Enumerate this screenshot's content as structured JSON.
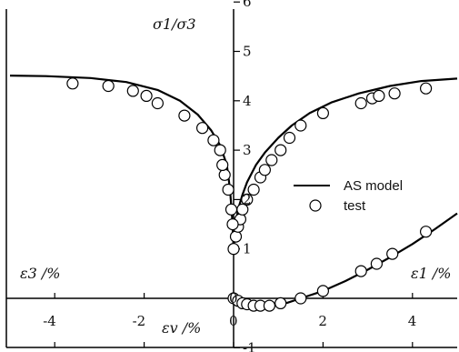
{
  "chart_data": {
    "type": "line",
    "y_axis": {
      "label": "σ1/σ3",
      "range": [
        -1,
        6
      ],
      "ticks": [
        "-1",
        "0",
        "1",
        "2",
        "3",
        "4",
        "5",
        "6"
      ],
      "tick_values": [
        -1,
        0,
        1,
        2,
        3,
        4,
        5,
        6
      ]
    },
    "x_axis": {
      "range": [
        -5,
        5
      ],
      "ticks": [
        "-4",
        "-2",
        "0",
        "2",
        "4"
      ],
      "tick_values": [
        -4,
        -2,
        0,
        2,
        4
      ]
    },
    "axis_labels": {
      "eps3": "ε3 /%",
      "eps1": "ε1 /%",
      "epsv": "εv /%"
    },
    "legend": [
      {
        "name": "AS model",
        "kind": "line"
      },
      {
        "name": "test",
        "kind": "marker"
      }
    ],
    "series": [
      {
        "name": "AS model",
        "panel": "stress-strain ε1 (right)",
        "points": [
          [
            0,
            1.0
          ],
          [
            0.05,
            1.5
          ],
          [
            0.1,
            1.8
          ],
          [
            0.2,
            2.1
          ],
          [
            0.3,
            2.35
          ],
          [
            0.5,
            2.7
          ],
          [
            0.7,
            2.95
          ],
          [
            1.0,
            3.25
          ],
          [
            1.3,
            3.5
          ],
          [
            1.7,
            3.75
          ],
          [
            2.2,
            3.97
          ],
          [
            2.8,
            4.15
          ],
          [
            3.5,
            4.3
          ],
          [
            4.2,
            4.4
          ],
          [
            5.0,
            4.45
          ]
        ]
      },
      {
        "name": "AS model",
        "panel": "stress-strain ε3 (left)",
        "points": [
          [
            0,
            1.0
          ],
          [
            -0.03,
            1.6
          ],
          [
            -0.08,
            2.2
          ],
          [
            -0.15,
            2.7
          ],
          [
            -0.3,
            3.1
          ],
          [
            -0.5,
            3.4
          ],
          [
            -0.8,
            3.72
          ],
          [
            -1.2,
            4.0
          ],
          [
            -1.7,
            4.22
          ],
          [
            -2.4,
            4.38
          ],
          [
            -3.2,
            4.46
          ],
          [
            -4.2,
            4.5
          ],
          [
            -5.0,
            4.51
          ]
        ]
      },
      {
        "name": "AS model",
        "panel": "volumetric εv vs ε1",
        "points": [
          [
            0,
            0
          ],
          [
            0.3,
            -0.05
          ],
          [
            0.6,
            -0.1
          ],
          [
            0.9,
            -0.12
          ],
          [
            1.2,
            -0.09
          ],
          [
            1.5,
            0
          ],
          [
            2.0,
            0.15
          ],
          [
            2.5,
            0.35
          ],
          [
            3.0,
            0.58
          ],
          [
            3.5,
            0.83
          ],
          [
            4.0,
            1.1
          ],
          [
            4.5,
            1.4
          ],
          [
            5.0,
            1.72
          ]
        ]
      },
      {
        "name": "test",
        "panel": "stress-strain ε1 (right)",
        "points": [
          [
            0.05,
            1.25
          ],
          [
            0.1,
            1.45
          ],
          [
            0.15,
            1.6
          ],
          [
            0.2,
            1.8
          ],
          [
            0.3,
            2.0
          ],
          [
            0.45,
            2.2
          ],
          [
            0.6,
            2.45
          ],
          [
            0.7,
            2.6
          ],
          [
            0.85,
            2.8
          ],
          [
            1.05,
            3.0
          ],
          [
            1.25,
            3.25
          ],
          [
            1.5,
            3.5
          ],
          [
            2.0,
            3.75
          ],
          [
            2.85,
            3.95
          ],
          [
            3.1,
            4.05
          ],
          [
            3.25,
            4.1
          ],
          [
            3.6,
            4.15
          ],
          [
            4.3,
            4.25
          ]
        ]
      },
      {
        "name": "test",
        "panel": "stress-strain ε3 (left)",
        "points": [
          [
            -0.02,
            1.5
          ],
          [
            -0.05,
            1.8
          ],
          [
            -0.12,
            2.2
          ],
          [
            -0.2,
            2.5
          ],
          [
            -0.25,
            2.7
          ],
          [
            -0.3,
            3.0
          ],
          [
            -0.45,
            3.2
          ],
          [
            -0.7,
            3.45
          ],
          [
            -1.1,
            3.7
          ],
          [
            -1.7,
            3.95
          ],
          [
            -1.95,
            4.1
          ],
          [
            -2.25,
            4.2
          ],
          [
            -2.8,
            4.3
          ],
          [
            -3.6,
            4.35
          ]
        ]
      },
      {
        "name": "test",
        "panel": "volumetric εv vs ε1",
        "points": [
          [
            0,
            1.0
          ],
          [
            0,
            0
          ],
          [
            0.1,
            -0.05
          ],
          [
            0.2,
            -0.1
          ],
          [
            0.3,
            -0.12
          ],
          [
            0.45,
            -0.15
          ],
          [
            0.6,
            -0.15
          ],
          [
            0.8,
            -0.15
          ],
          [
            1.05,
            -0.1
          ],
          [
            1.5,
            0
          ],
          [
            2.0,
            0.15
          ],
          [
            2.85,
            0.55
          ],
          [
            3.2,
            0.7
          ],
          [
            3.55,
            0.9
          ],
          [
            4.3,
            1.35
          ]
        ]
      }
    ]
  }
}
